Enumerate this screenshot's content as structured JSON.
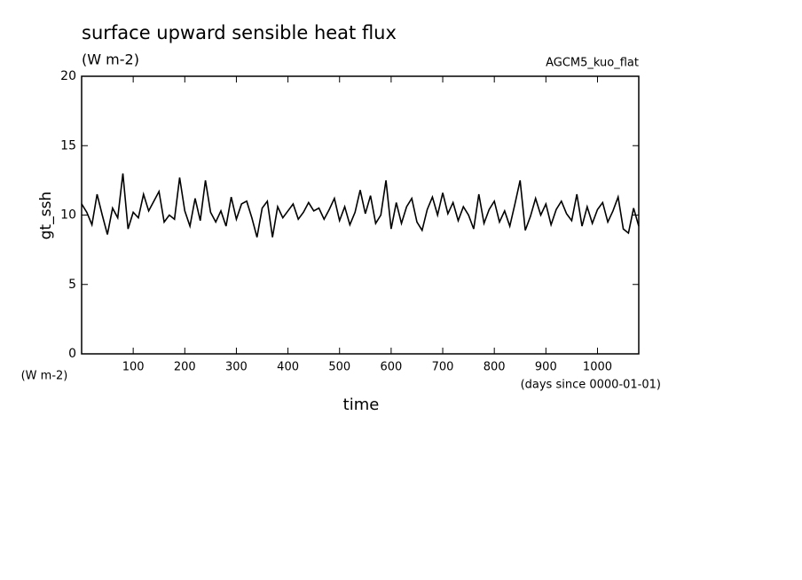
{
  "chart_data": {
    "type": "line",
    "title": "surface upward sensible heat flux",
    "subtitle": "(W m-2)",
    "annotation": "AGCM5_kuo_flat",
    "y_label": "gt_ssh",
    "y_units": "(W m-2)",
    "x_label": "time",
    "x_units": "(days since 0000-01-01)",
    "color": "#000000",
    "xlim": [
      0,
      1080
    ],
    "ylim": [
      0,
      20
    ],
    "xticks": [
      100,
      200,
      300,
      400,
      500,
      600,
      700,
      800,
      900,
      1000
    ],
    "yticks": [
      0,
      5,
      10,
      15,
      20
    ],
    "x": [
      0,
      10,
      20,
      30,
      40,
      50,
      60,
      70,
      80,
      90,
      100,
      110,
      120,
      130,
      140,
      150,
      160,
      170,
      180,
      190,
      200,
      210,
      220,
      230,
      240,
      250,
      260,
      270,
      280,
      290,
      300,
      310,
      320,
      330,
      340,
      350,
      360,
      370,
      380,
      390,
      400,
      410,
      420,
      430,
      440,
      450,
      460,
      470,
      480,
      490,
      500,
      510,
      520,
      530,
      540,
      550,
      560,
      570,
      580,
      590,
      600,
      610,
      620,
      630,
      640,
      650,
      660,
      670,
      680,
      690,
      700,
      710,
      720,
      730,
      740,
      750,
      760,
      770,
      780,
      790,
      800,
      810,
      820,
      830,
      840,
      850,
      860,
      870,
      880,
      890,
      900,
      910,
      920,
      930,
      940,
      950,
      960,
      970,
      980,
      990,
      1000,
      1010,
      1020,
      1030,
      1040,
      1050,
      1060,
      1070,
      1080
    ],
    "values": [
      10.8,
      10.2,
      9.3,
      11.5,
      10.0,
      8.6,
      10.5,
      9.8,
      13.0,
      9.0,
      10.2,
      9.8,
      11.5,
      10.3,
      11.0,
      11.7,
      9.5,
      10.0,
      9.7,
      12.7,
      10.3,
      9.2,
      11.2,
      9.6,
      12.5,
      10.2,
      9.5,
      10.3,
      9.2,
      11.3,
      9.7,
      10.8,
      11.0,
      9.8,
      8.4,
      10.5,
      11.0,
      8.4,
      10.6,
      9.8,
      10.3,
      10.8,
      9.7,
      10.2,
      10.9,
      10.3,
      10.5,
      9.7,
      10.4,
      11.2,
      9.6,
      10.6,
      9.3,
      10.2,
      11.8,
      10.1,
      11.4,
      9.4,
      10.0,
      12.5,
      9.0,
      10.9,
      9.4,
      10.6,
      11.2,
      9.5,
      8.9,
      10.4,
      11.3,
      10.0,
      11.6,
      10.1,
      10.9,
      9.6,
      10.6,
      10.0,
      9.0,
      11.5,
      9.4,
      10.4,
      11.0,
      9.5,
      10.3,
      9.2,
      10.8,
      12.5,
      8.9,
      9.9,
      11.2,
      10.0,
      10.8,
      9.3,
      10.4,
      11.0,
      10.1,
      9.6,
      11.5,
      9.2,
      10.6,
      9.4,
      10.4,
      10.9,
      9.5,
      10.3,
      11.3,
      9.0,
      8.7,
      10.5,
      9.2
    ]
  }
}
